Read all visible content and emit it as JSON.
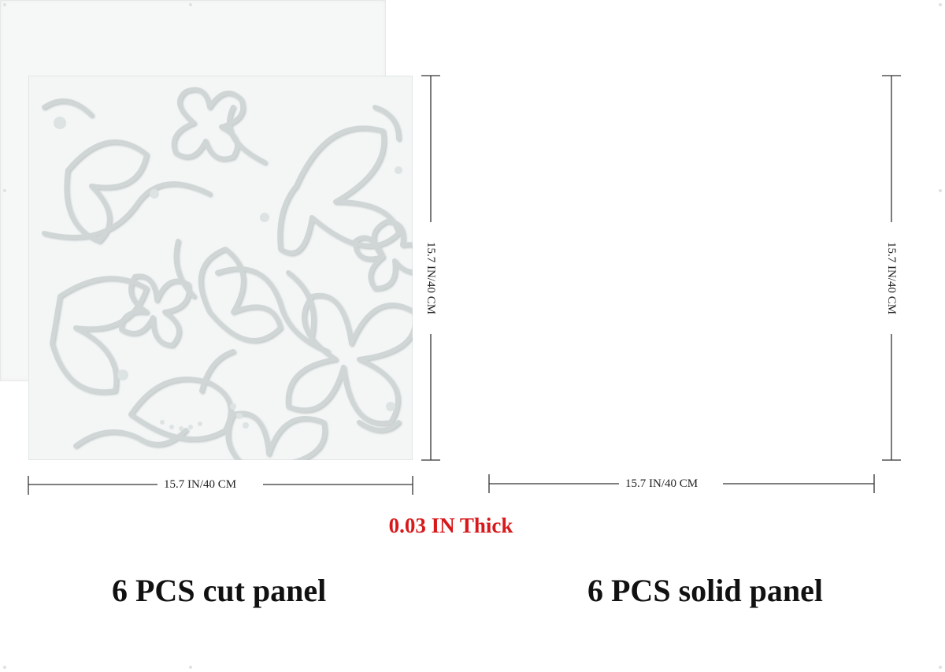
{
  "cut_panel": {
    "width_label": "15.7 IN/40 CM",
    "height_label": "15.7 IN/40 CM",
    "caption": "6 PCS cut panel"
  },
  "solid_panel": {
    "width_label": "15.7 IN/40 CM",
    "height_label": "15.7 IN/40 CM",
    "caption": "6 PCS solid panel"
  },
  "thickness_label": "0.03 IN Thick",
  "colors": {
    "panel": "#f4f6f6",
    "cutout": "#d3d8d8",
    "thickness_text": "#d7191c",
    "caption_text": "#111111"
  }
}
